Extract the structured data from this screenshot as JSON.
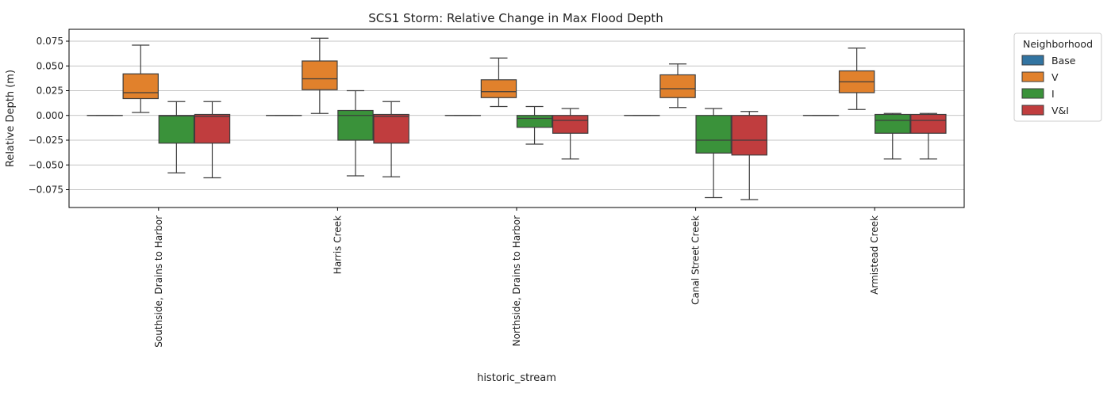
{
  "chart_data": {
    "type": "box",
    "title": "SCS1 Storm: Relative Change in Max Flood Depth",
    "xlabel": "historic_stream",
    "ylabel": "Relative Depth (m)",
    "ylim": [
      -0.093,
      0.087
    ],
    "yticks": [
      0.075,
      0.05,
      0.025,
      0.0,
      -0.025,
      -0.05,
      -0.075
    ],
    "ytick_labels": [
      "0.075",
      "0.050",
      "0.025",
      "0.000",
      "−0.025",
      "−0.050",
      "−0.075"
    ],
    "grid": "y",
    "categories": [
      "Southside, Drains to Harbor",
      "Harris Creek",
      "Northside, Drains to Harbor",
      "Canal Street Creek",
      "Armistead Creek"
    ],
    "legend": {
      "title": "Neighborhood",
      "placement": "outside-top-right"
    },
    "series": [
      {
        "name": "Base",
        "color": "#3274a1",
        "boxes": [
          {
            "whislo": 0.0,
            "q1": 0.0,
            "med": 0.0,
            "q3": 0.0,
            "whishi": 0.0
          },
          {
            "whislo": 0.0,
            "q1": 0.0,
            "med": 0.0,
            "q3": 0.0,
            "whishi": 0.0
          },
          {
            "whislo": 0.0,
            "q1": 0.0,
            "med": 0.0,
            "q3": 0.0,
            "whishi": 0.0
          },
          {
            "whislo": 0.0,
            "q1": 0.0,
            "med": 0.0,
            "q3": 0.0,
            "whishi": 0.0
          },
          {
            "whislo": 0.0,
            "q1": 0.0,
            "med": 0.0,
            "q3": 0.0,
            "whishi": 0.0
          }
        ]
      },
      {
        "name": "V",
        "color": "#e1812c",
        "boxes": [
          {
            "whislo": 0.003,
            "q1": 0.017,
            "med": 0.023,
            "q3": 0.042,
            "whishi": 0.071
          },
          {
            "whislo": 0.002,
            "q1": 0.026,
            "med": 0.037,
            "q3": 0.055,
            "whishi": 0.078
          },
          {
            "whislo": 0.009,
            "q1": 0.018,
            "med": 0.024,
            "q3": 0.036,
            "whishi": 0.058
          },
          {
            "whislo": 0.008,
            "q1": 0.018,
            "med": 0.027,
            "q3": 0.041,
            "whishi": 0.052
          },
          {
            "whislo": 0.006,
            "q1": 0.023,
            "med": 0.034,
            "q3": 0.045,
            "whishi": 0.068
          }
        ]
      },
      {
        "name": "I",
        "color": "#3a923a",
        "boxes": [
          {
            "whislo": -0.058,
            "q1": -0.028,
            "med": -0.0005,
            "q3": 0.0,
            "whishi": 0.014
          },
          {
            "whislo": -0.061,
            "q1": -0.025,
            "med": 0.0,
            "q3": 0.005,
            "whishi": 0.025
          },
          {
            "whislo": -0.029,
            "q1": -0.012,
            "med": -0.003,
            "q3": 0.0,
            "whishi": 0.009
          },
          {
            "whislo": -0.083,
            "q1": -0.038,
            "med": -0.025,
            "q3": 0.0,
            "whishi": 0.007
          },
          {
            "whislo": -0.044,
            "q1": -0.018,
            "med": -0.005,
            "q3": 0.001,
            "whishi": 0.002
          }
        ]
      },
      {
        "name": "V&I",
        "color": "#c03d3e",
        "boxes": [
          {
            "whislo": -0.063,
            "q1": -0.028,
            "med": -0.001,
            "q3": 0.001,
            "whishi": 0.014
          },
          {
            "whislo": -0.062,
            "q1": -0.028,
            "med": -0.001,
            "q3": 0.001,
            "whishi": 0.014
          },
          {
            "whislo": -0.044,
            "q1": -0.018,
            "med": -0.005,
            "q3": 0.0,
            "whishi": 0.007
          },
          {
            "whislo": -0.085,
            "q1": -0.04,
            "med": -0.025,
            "q3": 0.0,
            "whishi": 0.004
          },
          {
            "whislo": -0.044,
            "q1": -0.018,
            "med": -0.005,
            "q3": 0.001,
            "whishi": 0.002
          }
        ]
      }
    ]
  }
}
